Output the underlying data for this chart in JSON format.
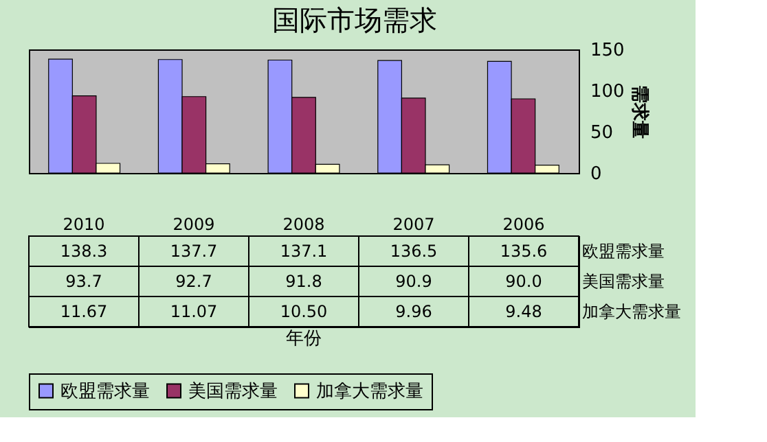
{
  "chart_data": {
    "type": "bar",
    "title": "国际市场需求",
    "annotations": [
      "年份"
    ],
    "ylabel": "需求量",
    "categories": [
      "2010",
      "2009",
      "2008",
      "2007",
      "2006"
    ],
    "series": [
      {
        "name": "欧盟需求量",
        "color": "#9999ff",
        "values": [
          138.3,
          137.7,
          137.1,
          136.5,
          135.6
        ],
        "value_labels": [
          "138.3",
          "137.7",
          "137.1",
          "136.5",
          "135.6"
        ]
      },
      {
        "name": "美国需求量",
        "color": "#993366",
        "values": [
          93.7,
          92.7,
          91.8,
          90.9,
          90.0
        ],
        "value_labels": [
          "93.7",
          "92.7",
          "91.8",
          "90.9",
          "90.0"
        ]
      },
      {
        "name": "加拿大需求量",
        "color": "#ffffcc",
        "values": [
          11.67,
          11.07,
          10.5,
          9.96,
          9.48
        ],
        "value_labels": [
          "11.67",
          "11.07",
          "10.50",
          "9.96",
          "9.48"
        ]
      }
    ],
    "ylim": [
      0,
      150
    ],
    "yticks": [
      0,
      50,
      100,
      150
    ],
    "grid": false,
    "legend": "bottom"
  }
}
